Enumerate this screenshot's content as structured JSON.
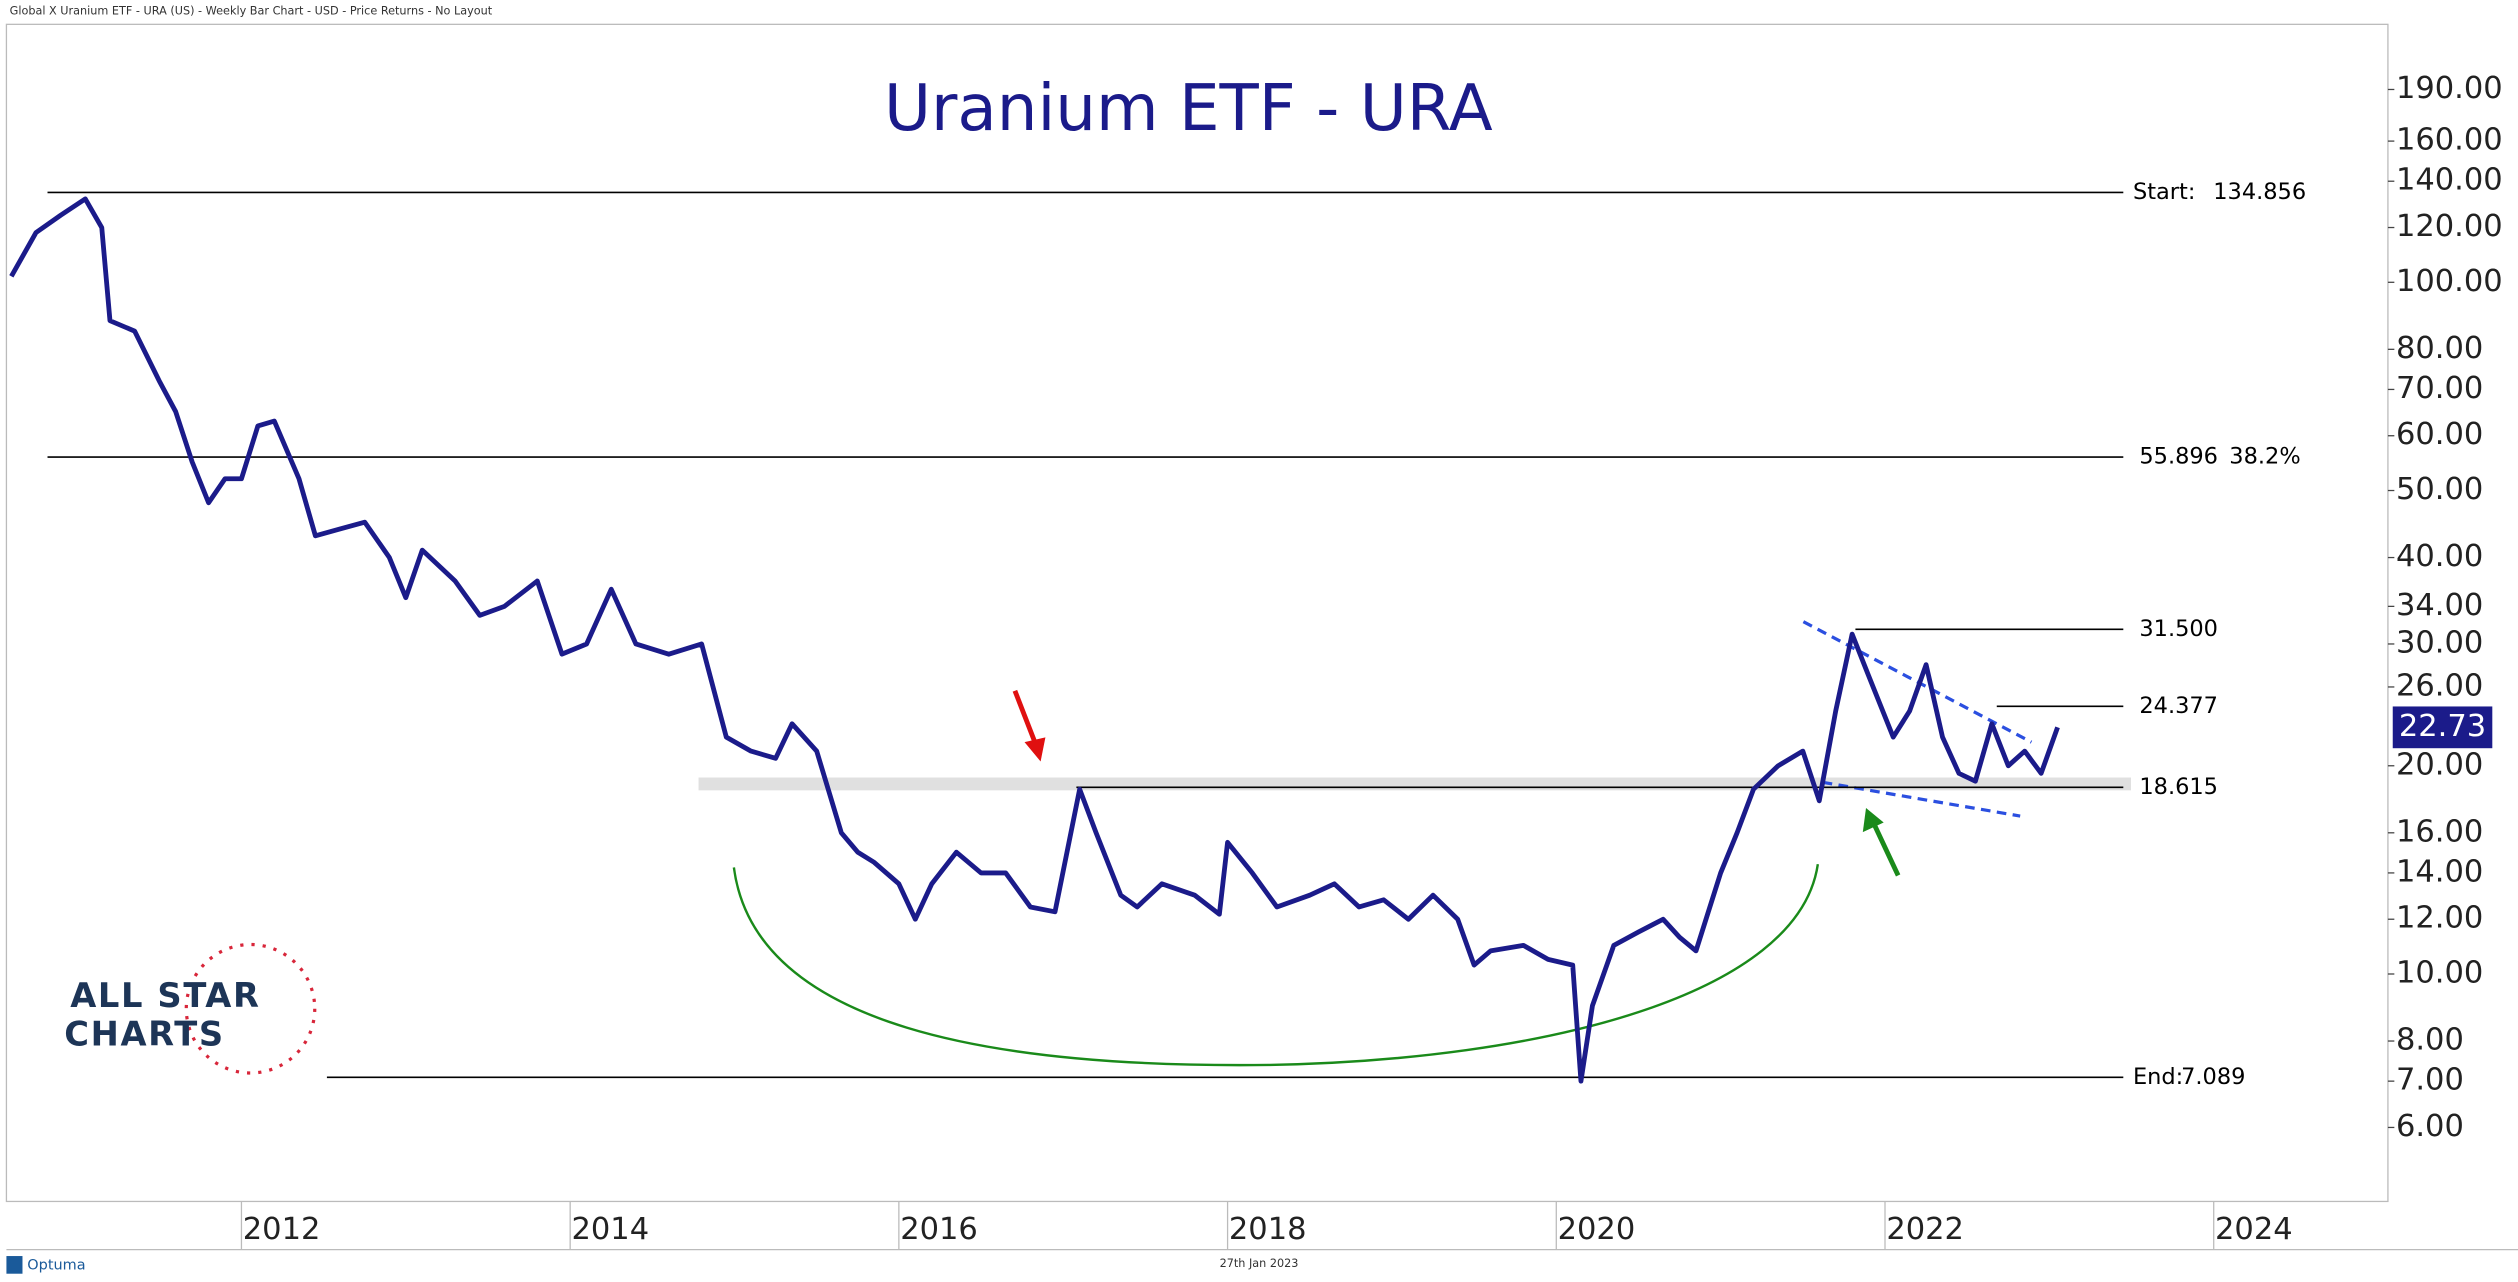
{
  "header": "Global X Uranium ETF - URA (US) - Weekly Bar Chart - USD - Price Returns - No Layout",
  "footer_date": "27th Jan 2023",
  "brand": "Optuma",
  "logo": {
    "line1": "ALL STAR",
    "line2": "CHARTS"
  },
  "chart_data": {
    "type": "line",
    "title": "Uranium ETF - URA",
    "log_scale": true,
    "color": "#1b1b8a",
    "xlim": [
      2010.57,
      2025.06
    ],
    "xticks": [
      2012,
      2014,
      2016,
      2018,
      2020,
      2022,
      2024
    ],
    "ylim": [
      4.69,
      236
    ],
    "yticks": [
      {
        "value": 190,
        "label": "190.00"
      },
      {
        "value": 160,
        "label": "160.00"
      },
      {
        "value": 140,
        "label": "140.00"
      },
      {
        "value": 120,
        "label": "120.00"
      },
      {
        "value": 100,
        "label": "100.00"
      },
      {
        "value": 80,
        "label": "80.00"
      },
      {
        "value": 70,
        "label": "70.00"
      },
      {
        "value": 60,
        "label": "60.00"
      },
      {
        "value": 50,
        "label": "50.00"
      },
      {
        "value": 40,
        "label": "40.00"
      },
      {
        "value": 34,
        "label": "34.00"
      },
      {
        "value": 30,
        "label": "30.00"
      },
      {
        "value": 26,
        "label": "26.00"
      },
      {
        "value": 20,
        "label": "20.00"
      },
      {
        "value": 16,
        "label": "16.00"
      },
      {
        "value": 14,
        "label": "14.00"
      },
      {
        "value": 12,
        "label": "12.00"
      },
      {
        "value": 10,
        "label": "10.00"
      },
      {
        "value": 8,
        "label": "8.00"
      },
      {
        "value": 7,
        "label": "7.00"
      },
      {
        "value": 6,
        "label": "6.00"
      }
    ],
    "last_value": 22.73,
    "x": [
      2010.6,
      2010.75,
      2010.9,
      2011.05,
      2011.15,
      2011.2,
      2011.35,
      2011.5,
      2011.6,
      2011.7,
      2011.8,
      2011.9,
      2012.0,
      2012.1,
      2012.2,
      2012.35,
      2012.45,
      2012.6,
      2012.75,
      2012.9,
      2013.0,
      2013.1,
      2013.3,
      2013.45,
      2013.6,
      2013.8,
      2013.95,
      2014.1,
      2014.25,
      2014.4,
      2014.6,
      2014.8,
      2014.95,
      2015.1,
      2015.25,
      2015.35,
      2015.5,
      2015.65,
      2015.75,
      2015.85,
      2016.0,
      2016.1,
      2016.2,
      2016.35,
      2016.5,
      2016.65,
      2016.8,
      2016.95,
      2017.1,
      2017.2,
      2017.35,
      2017.45,
      2017.6,
      2017.8,
      2017.95,
      2018.0,
      2018.15,
      2018.3,
      2018.5,
      2018.65,
      2018.8,
      2018.95,
      2019.1,
      2019.25,
      2019.4,
      2019.5,
      2019.6,
      2019.8,
      2019.95,
      2020.1,
      2020.15,
      2020.22,
      2020.35,
      2020.5,
      2020.65,
      2020.75,
      2020.85,
      2021.0,
      2021.1,
      2021.2,
      2021.35,
      2021.5,
      2021.6,
      2021.7,
      2021.8,
      2021.9,
      2022.05,
      2022.15,
      2022.25,
      2022.35,
      2022.45,
      2022.55,
      2022.65,
      2022.75,
      2022.85,
      2022.95,
      2023.05
    ],
    "values": [
      102,
      118,
      125,
      132,
      120,
      88,
      85,
      72,
      65,
      55,
      48,
      52,
      52,
      62,
      63,
      52,
      43,
      44,
      45,
      40,
      35,
      41,
      37,
      33,
      34,
      37,
      29,
      30,
      36,
      30,
      29,
      30,
      22,
      21,
      20.5,
      23,
      21,
      16,
      15,
      14.5,
      13.5,
      12,
      13.5,
      15,
      14,
      14,
      12.5,
      12.3,
      18.5,
      16,
      13,
      12.5,
      13.5,
      13,
      12.2,
      15.5,
      14,
      12.5,
      13,
      13.5,
      12.5,
      12.8,
      12,
      13,
      12,
      10.3,
      10.8,
      11,
      10.5,
      10.3,
      7.0,
      9,
      11,
      11.5,
      12,
      11.3,
      10.8,
      14,
      16,
      18.5,
      20,
      21,
      17.8,
      24,
      31,
      27,
      22,
      24,
      28,
      22,
      19.5,
      19,
      23,
      20,
      21,
      19.5,
      22.73
    ],
    "levels": [
      {
        "name": "Start:",
        "value": 134.856,
        "from": 2010.82
      },
      {
        "value": 55.896,
        "label": "55.896",
        "note": "38.2%",
        "from": 2010.82
      },
      {
        "value": 31.5,
        "label": "31.500",
        "from": 2021.82
      },
      {
        "value": 24.377,
        "label": "24.377",
        "from": 2022.68
      },
      {
        "value": 18.615,
        "label": "18.615",
        "from": 2017.08
      },
      {
        "name": "End:",
        "value": 7.089,
        "from": 2012.52
      }
    ],
    "levels_end": 2023.45
  }
}
